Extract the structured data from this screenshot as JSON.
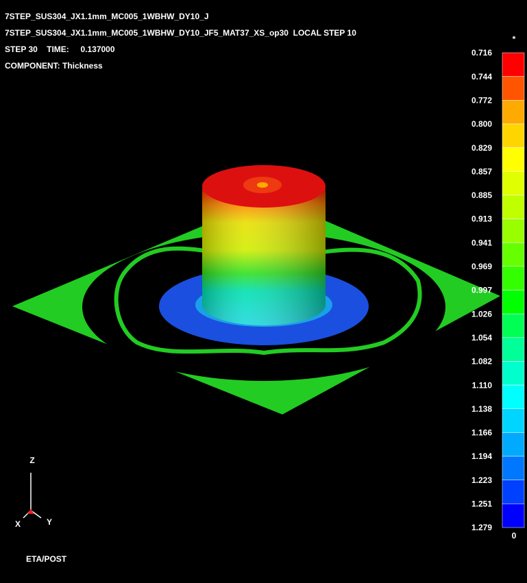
{
  "header": {
    "lines": [
      "7STEP_SUS304_JX1.1mm_MC005_1WBHW_DY10_J",
      "7STEP_SUS304_JX1.1mm_MC005_1WBHW_DY10_JF5_MAT37_XS_op30  LOCAL STEP 10",
      "STEP 30    TIME:     0.137000",
      "COMPONENT: Thickness"
    ]
  },
  "legend": {
    "marker_top": "*",
    "marker_bottom": "0",
    "labels": [
      "0.716",
      "0.744",
      "0.772",
      "0.800",
      "0.829",
      "0.857",
      "0.885",
      "0.913",
      "0.941",
      "0.969",
      "0.997",
      "1.026",
      "1.054",
      "1.082",
      "1.110",
      "1.138",
      "1.166",
      "1.194",
      "1.223",
      "1.251",
      "1.279"
    ],
    "colors": [
      "#ff0000",
      "#ff5500",
      "#ffaa00",
      "#ffd500",
      "#ffff00",
      "#e0ff00",
      "#c0ff00",
      "#99ff00",
      "#66ff00",
      "#33ff00",
      "#00ff00",
      "#00ff55",
      "#00ff99",
      "#00ffcc",
      "#00ffff",
      "#00d5ff",
      "#00aaff",
      "#0077ff",
      "#0040ff",
      "#0000ff"
    ]
  },
  "triad": {
    "z": "Z",
    "x": "X",
    "y": "Y"
  },
  "footer": "ETA/POST"
}
